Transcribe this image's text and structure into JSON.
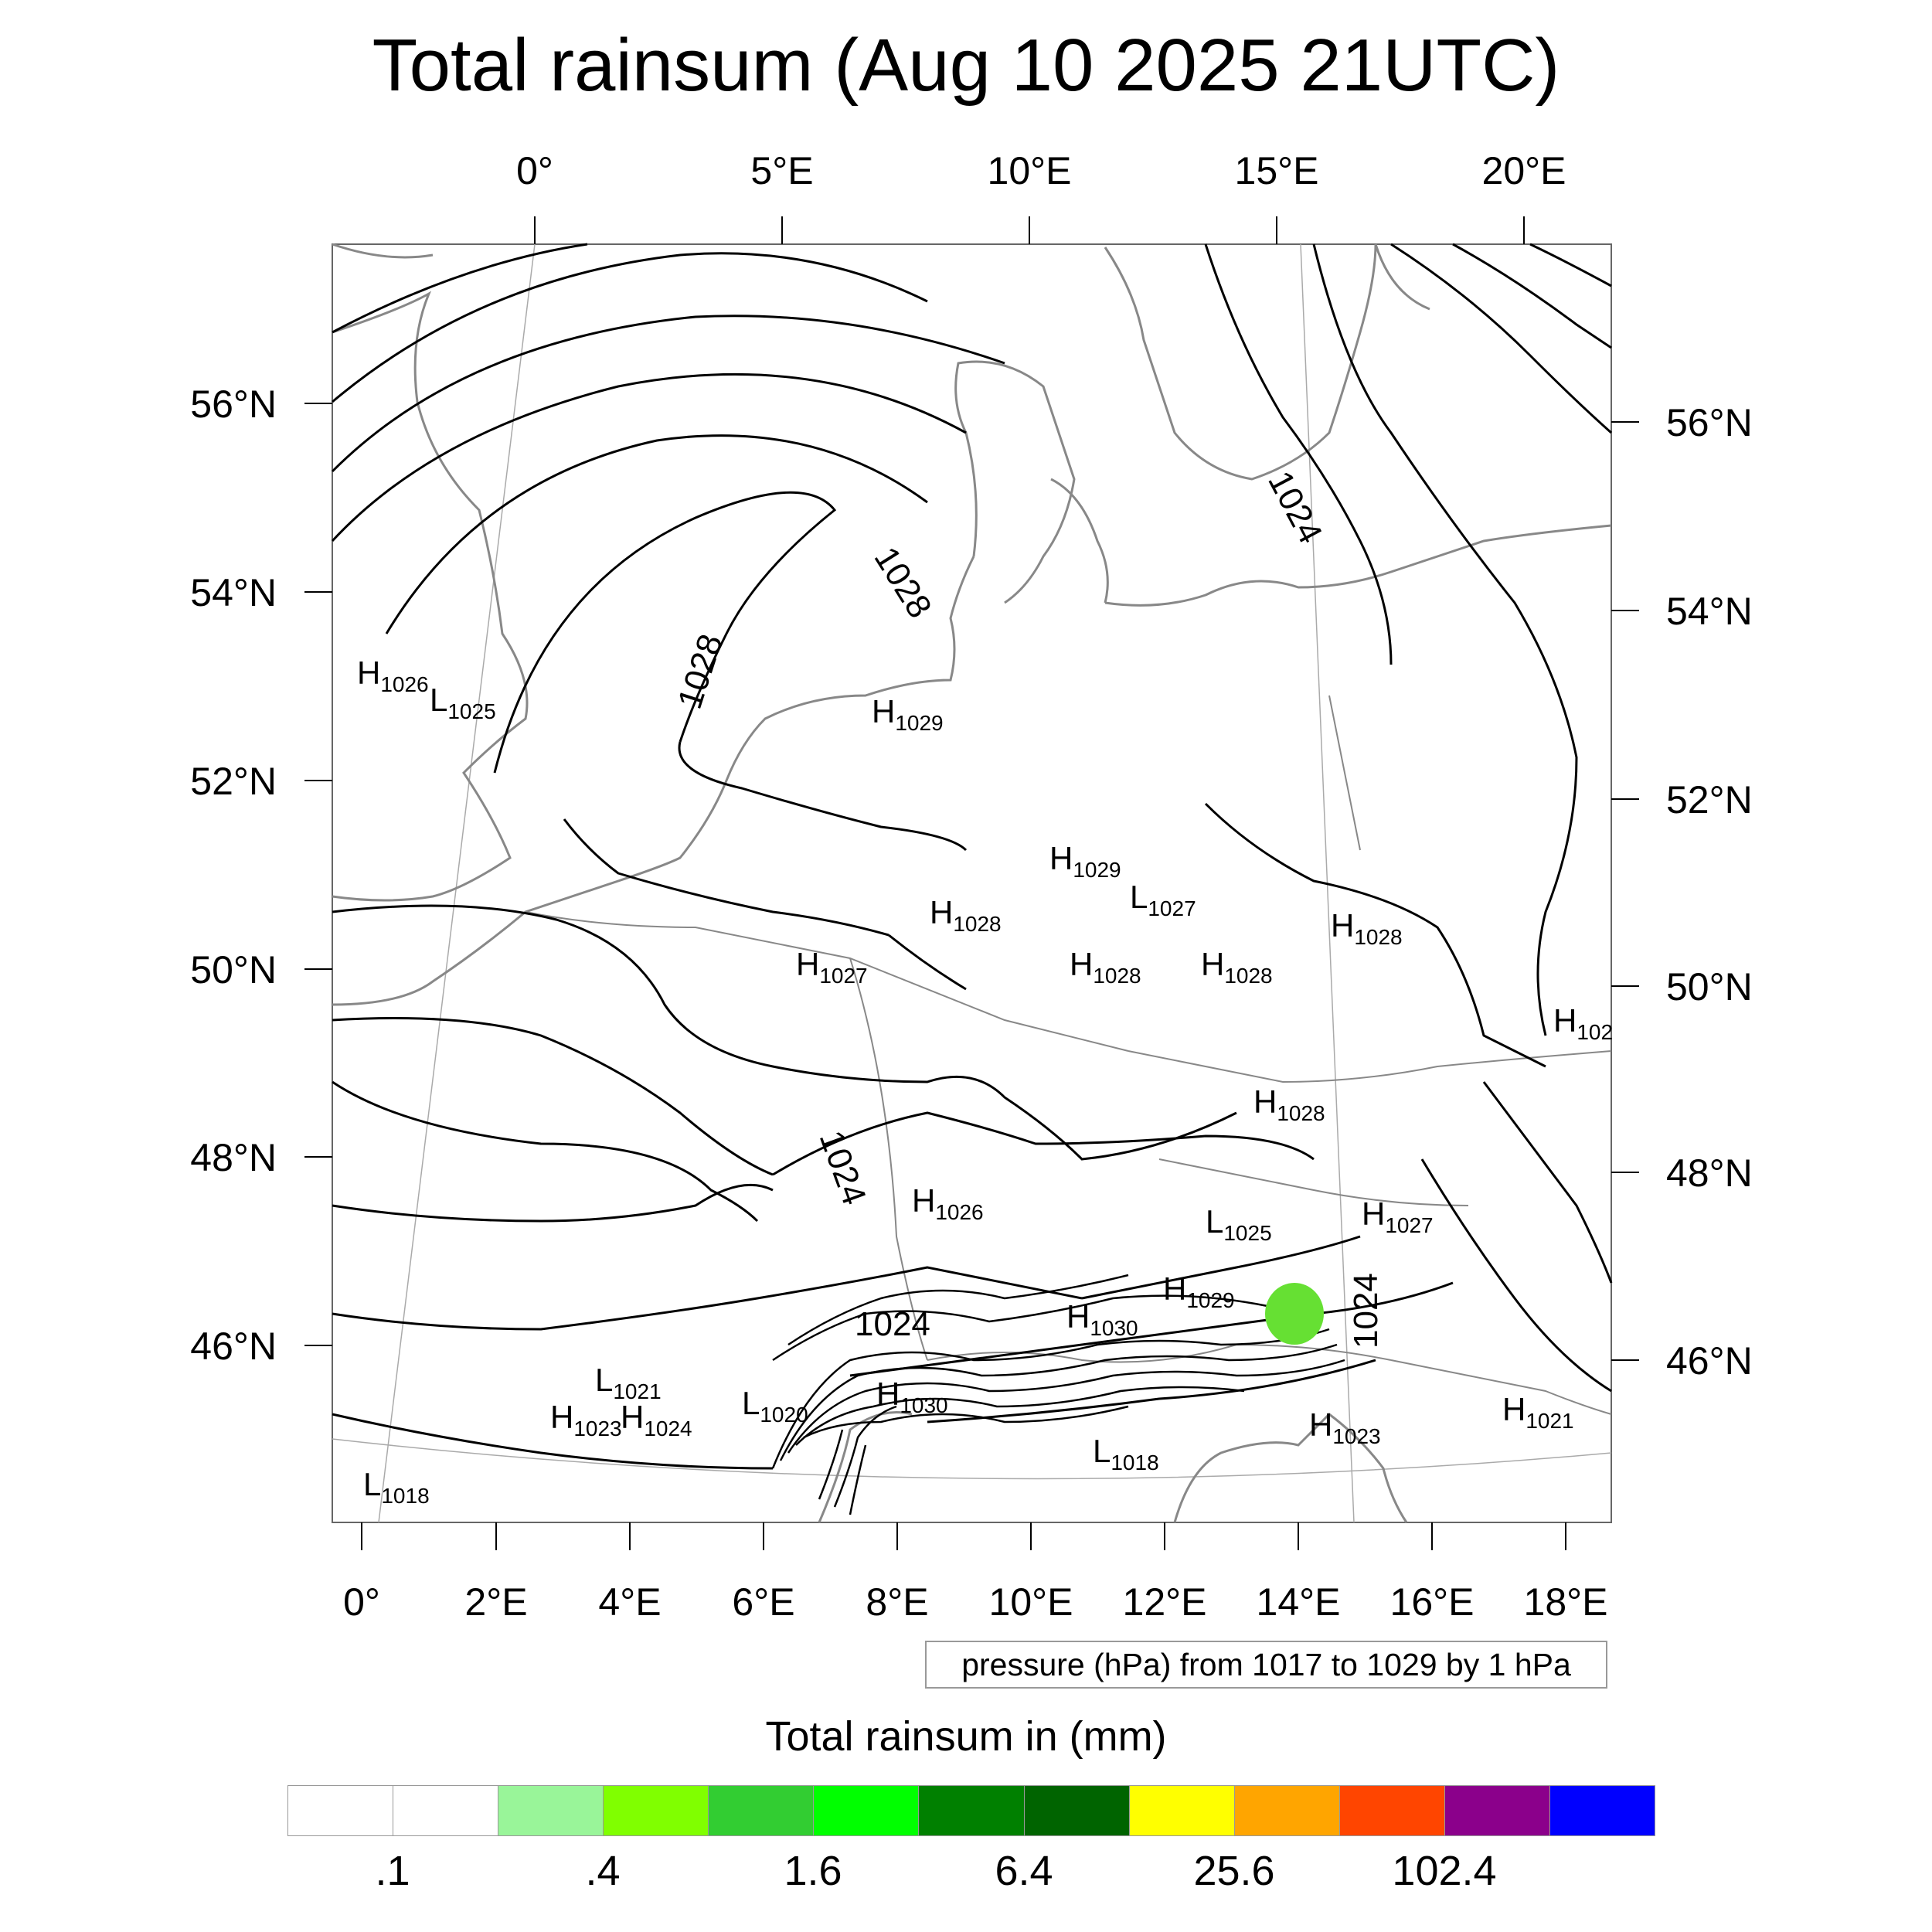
{
  "title": "Total rainsum (Aug 10 2025 21UTC)",
  "map": {
    "top_lon_labels": [
      "0°",
      "5°E",
      "10°E",
      "15°E",
      "20°E"
    ],
    "bottom_lon_labels": [
      "0°",
      "2°E",
      "4°E",
      "6°E",
      "8°E",
      "10°E",
      "12°E",
      "14°E",
      "16°E",
      "18°E"
    ],
    "left_lat_labels": [
      "56°N",
      "54°N",
      "52°N",
      "50°N",
      "48°N",
      "46°N"
    ],
    "right_lat_labels": [
      "56°N",
      "54°N",
      "52°N",
      "50°N",
      "48°N",
      "46°N"
    ],
    "contour_labels": [
      "1024",
      "1028",
      "1028",
      "1024",
      "1024",
      "1024"
    ],
    "pressure_centers": [
      {
        "letter": "H",
        "value": "1026"
      },
      {
        "letter": "L",
        "value": "1025"
      },
      {
        "letter": "H",
        "value": "1029"
      },
      {
        "letter": "H",
        "value": "1029"
      },
      {
        "letter": "L",
        "value": "1027"
      },
      {
        "letter": "H",
        "value": "1028"
      },
      {
        "letter": "H",
        "value": "1028"
      },
      {
        "letter": "H",
        "value": "1027"
      },
      {
        "letter": "H",
        "value": "1028"
      },
      {
        "letter": "H",
        "value": "1028"
      },
      {
        "letter": "H",
        "value": "1028"
      },
      {
        "letter": "H",
        "value": "102"
      },
      {
        "letter": "H",
        "value": "1026"
      },
      {
        "letter": "L",
        "value": "1025"
      },
      {
        "letter": "H",
        "value": "1027"
      },
      {
        "letter": "H",
        "value": "1029"
      },
      {
        "letter": "H",
        "value": "1030"
      },
      {
        "letter": "L",
        "value": "1021"
      },
      {
        "letter": "H",
        "value": "1023"
      },
      {
        "letter": "H",
        "value": "1024"
      },
      {
        "letter": "L",
        "value": "1020"
      },
      {
        "letter": "H",
        "value": "1030"
      },
      {
        "letter": "L",
        "value": "1018"
      },
      {
        "letter": "H",
        "value": "1023"
      },
      {
        "letter": "H",
        "value": "1021"
      },
      {
        "letter": "L",
        "value": "1018"
      }
    ],
    "rain_color": "#66e033"
  },
  "pressure_note": "pressure (hPa) from 1017 to 1029 by 1 hPa",
  "legend": {
    "title": "Total rainsum in (mm)",
    "colors": [
      "#ffffff",
      "#ffffff",
      "#99f599",
      "#80ff00",
      "#32cd32",
      "#00ff00",
      "#008000",
      "#006400",
      "#ffff00",
      "#ffa500",
      "#ff4500",
      "#8b008b",
      "#0000ff"
    ],
    "labels": [
      ".1",
      ".4",
      "1.6",
      "6.4",
      "25.6",
      "102.4"
    ]
  }
}
